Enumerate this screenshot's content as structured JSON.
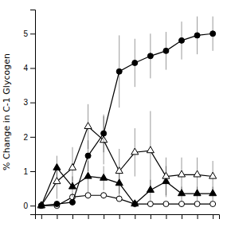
{
  "chart_data": {
    "type": "line",
    "x": [
      0,
      1,
      2,
      3,
      4,
      5,
      6,
      7,
      8,
      9,
      10,
      11
    ],
    "series": [
      {
        "color": "#000000",
        "marker": "circle-open",
        "values": [
          0.0,
          0.0,
          0.25,
          0.3,
          0.3,
          0.2,
          0.05,
          0.05,
          0.05,
          0.05,
          0.05,
          0.05
        ],
        "errors": [
          0.0,
          0.05,
          0.1,
          0.1,
          0.1,
          0.08,
          0.05,
          0.05,
          0.05,
          0.05,
          0.05,
          0.05
        ]
      },
      {
        "color": "#000000",
        "marker": "triangle",
        "values": [
          0.0,
          1.1,
          0.55,
          0.85,
          0.8,
          0.65,
          0.05,
          0.45,
          0.7,
          0.35,
          0.35,
          0.35
        ],
        "errors": [
          0.0,
          0.35,
          0.3,
          0.45,
          0.35,
          0.4,
          0.1,
          0.3,
          0.45,
          0.2,
          0.2,
          0.2
        ]
      },
      {
        "color": "#000000",
        "marker": "triangle-open",
        "values": [
          0.0,
          0.7,
          1.1,
          2.3,
          1.9,
          1.0,
          1.55,
          1.6,
          0.85,
          0.9,
          0.9,
          0.85
        ],
        "errors": [
          0.0,
          0.5,
          0.6,
          0.65,
          0.7,
          0.65,
          0.7,
          1.15,
          0.55,
          0.5,
          0.5,
          0.45
        ]
      },
      {
        "color": "#000000",
        "marker": "circle",
        "values": [
          0.0,
          0.05,
          0.1,
          1.45,
          2.1,
          3.9,
          4.15,
          4.35,
          4.5,
          4.8,
          4.95,
          5.0
        ],
        "errors": [
          0.0,
          0.05,
          0.1,
          0.45,
          0.55,
          1.05,
          0.7,
          0.65,
          0.55,
          0.55,
          0.55,
          0.5
        ]
      }
    ],
    "ylabel": "% Change in C-1 Glycogen",
    "xlim": [
      -0.4,
      11.4
    ],
    "xticks": [
      0,
      1,
      2,
      3,
      4,
      5,
      6,
      7,
      8,
      9,
      10,
      11
    ],
    "ylim": [
      -0.25,
      5.7
    ],
    "yticks": [
      0,
      1,
      2,
      3,
      4,
      5
    ],
    "tick_labels": "y"
  }
}
